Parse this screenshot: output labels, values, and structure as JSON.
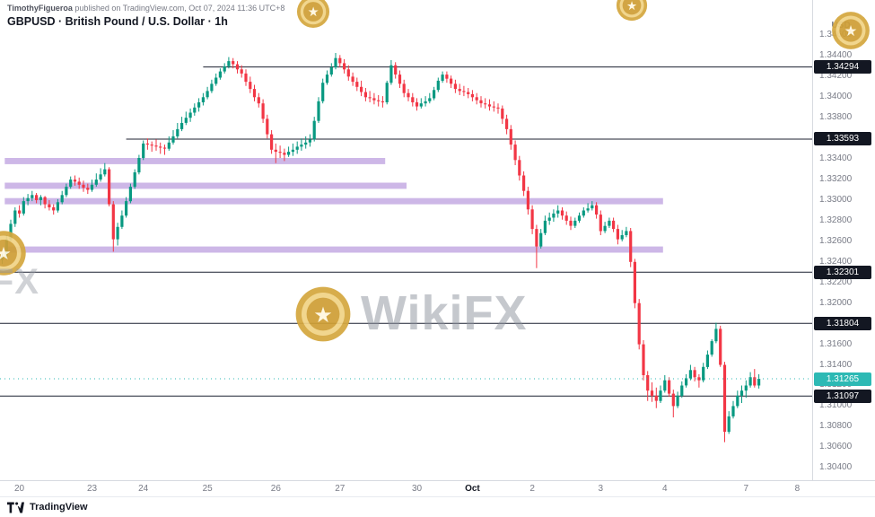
{
  "header": {
    "attribution_name": "TimothyFigueroa",
    "attribution_rest": " published on TradingView.com, Oct 07, 2024 11:36 UTC+8",
    "symbol_title": "GBPUSD · British Pound / U.S. Dollar · 1h"
  },
  "watermark": {
    "text": "WikiFX"
  },
  "footer": {
    "brand": "TradingView"
  },
  "chart_data": {
    "type": "candlestick",
    "symbol": "GBPUSD",
    "interval": "1h",
    "title": "GBPUSD · British Pound / U.S. Dollar · 1h",
    "grid": false,
    "visible_slots": 190,
    "price_range": [
      1.3028,
      1.347
    ],
    "colors": {
      "up": "#089981",
      "down": "#f23645",
      "zone": "#9b6fd0",
      "level_line": "#1c2030",
      "badge_bg": "#131722",
      "badge_text": "#ffffff",
      "last": "#2db9b4",
      "tick_text": "#787b86",
      "watermark_gold": "#d4a73f"
    },
    "axis": {
      "currency": "USD",
      "price_ticks": [
        "1.34600",
        "1.34400",
        "1.34200",
        "1.34000",
        "1.33800",
        "1.33400",
        "1.33200",
        "1.33000",
        "1.32800",
        "1.32600",
        "1.32400",
        "1.32200",
        "1.32000",
        "1.31600",
        "1.31400",
        "1.31200",
        "1.31000",
        "1.30800",
        "1.30600",
        "1.30400"
      ],
      "time_labels": [
        {
          "label": "20",
          "index": 4
        },
        {
          "label": "23",
          "index": 21
        },
        {
          "label": "24",
          "index": 33
        },
        {
          "label": "25",
          "index": 48
        },
        {
          "label": "26",
          "index": 64
        },
        {
          "label": "27",
          "index": 79
        },
        {
          "label": "30",
          "index": 97
        },
        {
          "label": "Oct",
          "index": 110,
          "month": true
        },
        {
          "label": "2",
          "index": 124
        },
        {
          "label": "3",
          "index": 140
        },
        {
          "label": "4",
          "index": 155
        },
        {
          "label": "7",
          "index": 174
        },
        {
          "label": "8",
          "index": 186
        }
      ]
    },
    "levels": [
      {
        "label": "1.34294",
        "price": 1.34294,
        "from_index": 47
      },
      {
        "label": "1.33593",
        "price": 1.33593,
        "from_index": 29
      },
      {
        "label": "1.32301",
        "price": 1.32301,
        "from_index": 0
      },
      {
        "label": "1.31804",
        "price": 1.31804,
        "from_index": 0
      },
      {
        "label": "1.31097",
        "price": 1.31097,
        "from_index": 0
      }
    ],
    "bands": [
      {
        "price_top": 1.3341,
        "price_bottom": 1.3335,
        "from_index": 1,
        "to_index": 90
      },
      {
        "price_top": 1.3317,
        "price_bottom": 1.3311,
        "from_index": 1,
        "to_index": 95
      },
      {
        "price_top": 1.3302,
        "price_bottom": 1.3296,
        "from_index": 1,
        "to_index": 155
      },
      {
        "price_top": 1.3255,
        "price_bottom": 1.3249,
        "from_index": 1,
        "to_index": 155
      }
    ],
    "last_price": {
      "label": "1.31265",
      "price": 1.31265
    },
    "candles": [
      [
        1.3242,
        1.3248,
        1.3238,
        1.3245
      ],
      [
        1.3245,
        1.3266,
        1.3242,
        1.3262
      ],
      [
        1.3262,
        1.3281,
        1.326,
        1.3277
      ],
      [
        1.3277,
        1.3293,
        1.3274,
        1.329
      ],
      [
        1.329,
        1.3295,
        1.3283,
        1.3287
      ],
      [
        1.3287,
        1.3303,
        1.3285,
        1.3299
      ],
      [
        1.3299,
        1.3306,
        1.3295,
        1.3302
      ],
      [
        1.3302,
        1.3309,
        1.3299,
        1.3305
      ],
      [
        1.3305,
        1.3307,
        1.3297,
        1.33
      ],
      [
        1.33,
        1.3305,
        1.3295,
        1.3303
      ],
      [
        1.3303,
        1.3304,
        1.3292,
        1.3296
      ],
      [
        1.3296,
        1.33,
        1.329,
        1.3293
      ],
      [
        1.3293,
        1.3296,
        1.3286,
        1.329
      ],
      [
        1.329,
        1.3301,
        1.3288,
        1.3298
      ],
      [
        1.3298,
        1.3309,
        1.3296,
        1.3305
      ],
      [
        1.3305,
        1.3316,
        1.3303,
        1.3313
      ],
      [
        1.3313,
        1.3323,
        1.3311,
        1.332
      ],
      [
        1.332,
        1.3324,
        1.3314,
        1.3318
      ],
      [
        1.3318,
        1.3322,
        1.3311,
        1.3315
      ],
      [
        1.3315,
        1.3319,
        1.3308,
        1.3312
      ],
      [
        1.3312,
        1.3316,
        1.3306,
        1.331
      ],
      [
        1.331,
        1.332,
        1.3308,
        1.3315
      ],
      [
        1.3315,
        1.3326,
        1.3313,
        1.332
      ],
      [
        1.332,
        1.3331,
        1.3318,
        1.3325
      ],
      [
        1.3325,
        1.3336,
        1.3323,
        1.333
      ],
      [
        1.333,
        1.3332,
        1.3294,
        1.3296
      ],
      [
        1.3296,
        1.3299,
        1.325,
        1.3262
      ],
      [
        1.3262,
        1.3278,
        1.3256,
        1.3274
      ],
      [
        1.3274,
        1.329,
        1.3272,
        1.3285
      ],
      [
        1.3285,
        1.3303,
        1.3283,
        1.3299
      ],
      [
        1.3299,
        1.3316,
        1.3297,
        1.3313
      ],
      [
        1.3313,
        1.333,
        1.3311,
        1.3327
      ],
      [
        1.3327,
        1.3344,
        1.3325,
        1.3341
      ],
      [
        1.3341,
        1.3358,
        1.3339,
        1.3355
      ],
      [
        1.3355,
        1.336,
        1.3349,
        1.3354
      ],
      [
        1.3354,
        1.3357,
        1.3347,
        1.3353
      ],
      [
        1.3353,
        1.3359,
        1.3348,
        1.3352
      ],
      [
        1.3352,
        1.3356,
        1.3345,
        1.3351
      ],
      [
        1.3351,
        1.3354,
        1.3344,
        1.335
      ],
      [
        1.335,
        1.3362,
        1.3348,
        1.3356
      ],
      [
        1.3356,
        1.3368,
        1.3354,
        1.3362
      ],
      [
        1.3362,
        1.3375,
        1.336,
        1.3369
      ],
      [
        1.3369,
        1.3381,
        1.3367,
        1.3375
      ],
      [
        1.3375,
        1.3386,
        1.3373,
        1.338
      ],
      [
        1.338,
        1.3389,
        1.3376,
        1.3385
      ],
      [
        1.3385,
        1.3394,
        1.3382,
        1.339
      ],
      [
        1.339,
        1.3399,
        1.3386,
        1.3395
      ],
      [
        1.3395,
        1.3404,
        1.3392,
        1.34
      ],
      [
        1.34,
        1.341,
        1.3398,
        1.3406
      ],
      [
        1.3406,
        1.3417,
        1.3404,
        1.3413
      ],
      [
        1.3413,
        1.3423,
        1.3411,
        1.3419
      ],
      [
        1.3419,
        1.3428,
        1.3417,
        1.3425
      ],
      [
        1.3425,
        1.3433,
        1.3423,
        1.343
      ],
      [
        1.343,
        1.3439,
        1.3428,
        1.3435
      ],
      [
        1.3435,
        1.3438,
        1.3428,
        1.3432
      ],
      [
        1.3432,
        1.3435,
        1.3423,
        1.3427
      ],
      [
        1.3427,
        1.3431,
        1.3419,
        1.3423
      ],
      [
        1.3423,
        1.3427,
        1.3411,
        1.3415
      ],
      [
        1.3415,
        1.342,
        1.3404,
        1.3408
      ],
      [
        1.3408,
        1.3412,
        1.3396,
        1.34
      ],
      [
        1.34,
        1.3404,
        1.339,
        1.3394
      ],
      [
        1.3394,
        1.3398,
        1.3375,
        1.3379
      ],
      [
        1.3379,
        1.3383,
        1.336,
        1.3364
      ],
      [
        1.3364,
        1.3368,
        1.3345,
        1.3349
      ],
      [
        1.3349,
        1.3355,
        1.3336,
        1.3347
      ],
      [
        1.3347,
        1.3353,
        1.3341,
        1.3346
      ],
      [
        1.3346,
        1.335,
        1.3338,
        1.3344
      ],
      [
        1.3344,
        1.3352,
        1.3342,
        1.3347
      ],
      [
        1.3347,
        1.3355,
        1.3343,
        1.3349
      ],
      [
        1.3349,
        1.3357,
        1.3345,
        1.3352
      ],
      [
        1.3352,
        1.336,
        1.3348,
        1.3354
      ],
      [
        1.3354,
        1.3362,
        1.335,
        1.3356
      ],
      [
        1.3356,
        1.3364,
        1.3352,
        1.3359
      ],
      [
        1.3359,
        1.3381,
        1.3357,
        1.3377
      ],
      [
        1.3377,
        1.34,
        1.3375,
        1.3396
      ],
      [
        1.3396,
        1.3418,
        1.3394,
        1.3414
      ],
      [
        1.3414,
        1.3426,
        1.3412,
        1.3422
      ],
      [
        1.3422,
        1.3433,
        1.342,
        1.3429
      ],
      [
        1.3429,
        1.3443,
        1.3427,
        1.3438
      ],
      [
        1.3438,
        1.3441,
        1.3429,
        1.3433
      ],
      [
        1.3433,
        1.3437,
        1.3423,
        1.3427
      ],
      [
        1.3427,
        1.3431,
        1.3416,
        1.342
      ],
      [
        1.342,
        1.3424,
        1.3411,
        1.3415
      ],
      [
        1.3415,
        1.3419,
        1.3406,
        1.341
      ],
      [
        1.341,
        1.3416,
        1.3401,
        1.3405
      ],
      [
        1.3405,
        1.3409,
        1.3396,
        1.34
      ],
      [
        1.34,
        1.3406,
        1.3395,
        1.3399
      ],
      [
        1.3399,
        1.3404,
        1.3393,
        1.3397
      ],
      [
        1.3397,
        1.3402,
        1.3391,
        1.3396
      ],
      [
        1.3396,
        1.3401,
        1.339,
        1.3395
      ],
      [
        1.3395,
        1.3416,
        1.3393,
        1.3414
      ],
      [
        1.3414,
        1.3436,
        1.3412,
        1.3431
      ],
      [
        1.3431,
        1.3434,
        1.3418,
        1.3422
      ],
      [
        1.3422,
        1.3426,
        1.3409,
        1.3413
      ],
      [
        1.3413,
        1.3417,
        1.34,
        1.3404
      ],
      [
        1.3404,
        1.3408,
        1.3396,
        1.34
      ],
      [
        1.34,
        1.3404,
        1.3391,
        1.3395
      ],
      [
        1.3395,
        1.3399,
        1.3387,
        1.3391
      ],
      [
        1.3391,
        1.3399,
        1.3389,
        1.3394
      ],
      [
        1.3394,
        1.3401,
        1.3391,
        1.3396
      ],
      [
        1.3396,
        1.3404,
        1.3394,
        1.3399
      ],
      [
        1.3399,
        1.341,
        1.3397,
        1.3407
      ],
      [
        1.3407,
        1.3419,
        1.3405,
        1.3416
      ],
      [
        1.3416,
        1.3425,
        1.3414,
        1.3422
      ],
      [
        1.3422,
        1.3425,
        1.3414,
        1.3418
      ],
      [
        1.3418,
        1.3421,
        1.3409,
        1.3413
      ],
      [
        1.3413,
        1.3417,
        1.3404,
        1.3408
      ],
      [
        1.3408,
        1.3413,
        1.3402,
        1.3406
      ],
      [
        1.3406,
        1.3411,
        1.3401,
        1.3405
      ],
      [
        1.3405,
        1.3409,
        1.3399,
        1.3403
      ],
      [
        1.3403,
        1.3407,
        1.3396,
        1.34
      ],
      [
        1.34,
        1.3404,
        1.3393,
        1.3397
      ],
      [
        1.3397,
        1.3401,
        1.339,
        1.3394
      ],
      [
        1.3394,
        1.3399,
        1.3389,
        1.3393
      ],
      [
        1.3393,
        1.3398,
        1.3387,
        1.3391
      ],
      [
        1.3391,
        1.3396,
        1.3386,
        1.339
      ],
      [
        1.339,
        1.3394,
        1.3384,
        1.3389
      ],
      [
        1.3389,
        1.3392,
        1.3374,
        1.3379
      ],
      [
        1.3379,
        1.3383,
        1.3364,
        1.3369
      ],
      [
        1.3369,
        1.3373,
        1.3349,
        1.3354
      ],
      [
        1.3354,
        1.3358,
        1.3334,
        1.3339
      ],
      [
        1.3339,
        1.3343,
        1.3319,
        1.3324
      ],
      [
        1.3324,
        1.3328,
        1.3304,
        1.3309
      ],
      [
        1.3309,
        1.3313,
        1.3286,
        1.3291
      ],
      [
        1.3291,
        1.3295,
        1.3267,
        1.3272
      ],
      [
        1.3272,
        1.3276,
        1.3234,
        1.3255
      ],
      [
        1.3255,
        1.3272,
        1.3253,
        1.3268
      ],
      [
        1.3268,
        1.3285,
        1.3266,
        1.328
      ],
      [
        1.328,
        1.3288,
        1.3276,
        1.3283
      ],
      [
        1.3283,
        1.3291,
        1.3279,
        1.3287
      ],
      [
        1.3287,
        1.3295,
        1.3283,
        1.329
      ],
      [
        1.329,
        1.3293,
        1.3281,
        1.3285
      ],
      [
        1.3285,
        1.3289,
        1.3276,
        1.328
      ],
      [
        1.328,
        1.3284,
        1.3271,
        1.3275
      ],
      [
        1.3275,
        1.3283,
        1.3273,
        1.328
      ],
      [
        1.328,
        1.3288,
        1.3278,
        1.3285
      ],
      [
        1.3285,
        1.3293,
        1.3283,
        1.329
      ],
      [
        1.329,
        1.3297,
        1.3288,
        1.3292
      ],
      [
        1.3292,
        1.3299,
        1.329,
        1.3295
      ],
      [
        1.3295,
        1.3298,
        1.3282,
        1.3286
      ],
      [
        1.3286,
        1.329,
        1.3266,
        1.327
      ],
      [
        1.327,
        1.3279,
        1.3268,
        1.3275
      ],
      [
        1.3275,
        1.3283,
        1.3273,
        1.328
      ],
      [
        1.328,
        1.3283,
        1.3269,
        1.3272
      ],
      [
        1.3272,
        1.3276,
        1.3257,
        1.3262
      ],
      [
        1.3262,
        1.3271,
        1.326,
        1.3266
      ],
      [
        1.3266,
        1.3274,
        1.3264,
        1.327
      ],
      [
        1.327,
        1.3273,
        1.3235,
        1.324
      ],
      [
        1.324,
        1.3243,
        1.3195,
        1.32
      ],
      [
        1.32,
        1.3204,
        1.3155,
        1.316
      ],
      [
        1.316,
        1.3164,
        1.3125,
        1.313
      ],
      [
        1.313,
        1.3134,
        1.3105,
        1.3115
      ],
      [
        1.3115,
        1.3123,
        1.3104,
        1.311
      ],
      [
        1.311,
        1.3118,
        1.3098,
        1.3105
      ],
      [
        1.3105,
        1.312,
        1.3103,
        1.3115
      ],
      [
        1.3115,
        1.313,
        1.3113,
        1.3125
      ],
      [
        1.3125,
        1.3128,
        1.3109,
        1.3112
      ],
      [
        1.3112,
        1.3116,
        1.3089,
        1.31
      ],
      [
        1.31,
        1.3114,
        1.3098,
        1.311
      ],
      [
        1.311,
        1.3124,
        1.3108,
        1.312
      ],
      [
        1.312,
        1.3131,
        1.3118,
        1.3127
      ],
      [
        1.3127,
        1.314,
        1.3125,
        1.3135
      ],
      [
        1.3135,
        1.3138,
        1.3124,
        1.3128
      ],
      [
        1.3128,
        1.3131,
        1.3118,
        1.3125
      ],
      [
        1.3125,
        1.3142,
        1.3123,
        1.3138
      ],
      [
        1.3138,
        1.3154,
        1.3136,
        1.315
      ],
      [
        1.315,
        1.3165,
        1.3148,
        1.3163
      ],
      [
        1.3163,
        1.3181,
        1.3161,
        1.3175
      ],
      [
        1.3175,
        1.3178,
        1.3138,
        1.314
      ],
      [
        1.314,
        1.3143,
        1.3065,
        1.3075
      ],
      [
        1.3075,
        1.3095,
        1.3073,
        1.309
      ],
      [
        1.309,
        1.3105,
        1.3088,
        1.31
      ],
      [
        1.31,
        1.3115,
        1.3098,
        1.311
      ],
      [
        1.311,
        1.312,
        1.3103,
        1.3115
      ],
      [
        1.3115,
        1.3125,
        1.3108,
        1.312
      ],
      [
        1.312,
        1.3133,
        1.3118,
        1.3128
      ],
      [
        1.3128,
        1.3136,
        1.3118,
        1.312
      ],
      [
        1.312,
        1.3131,
        1.3117,
        1.31265
      ]
    ]
  }
}
